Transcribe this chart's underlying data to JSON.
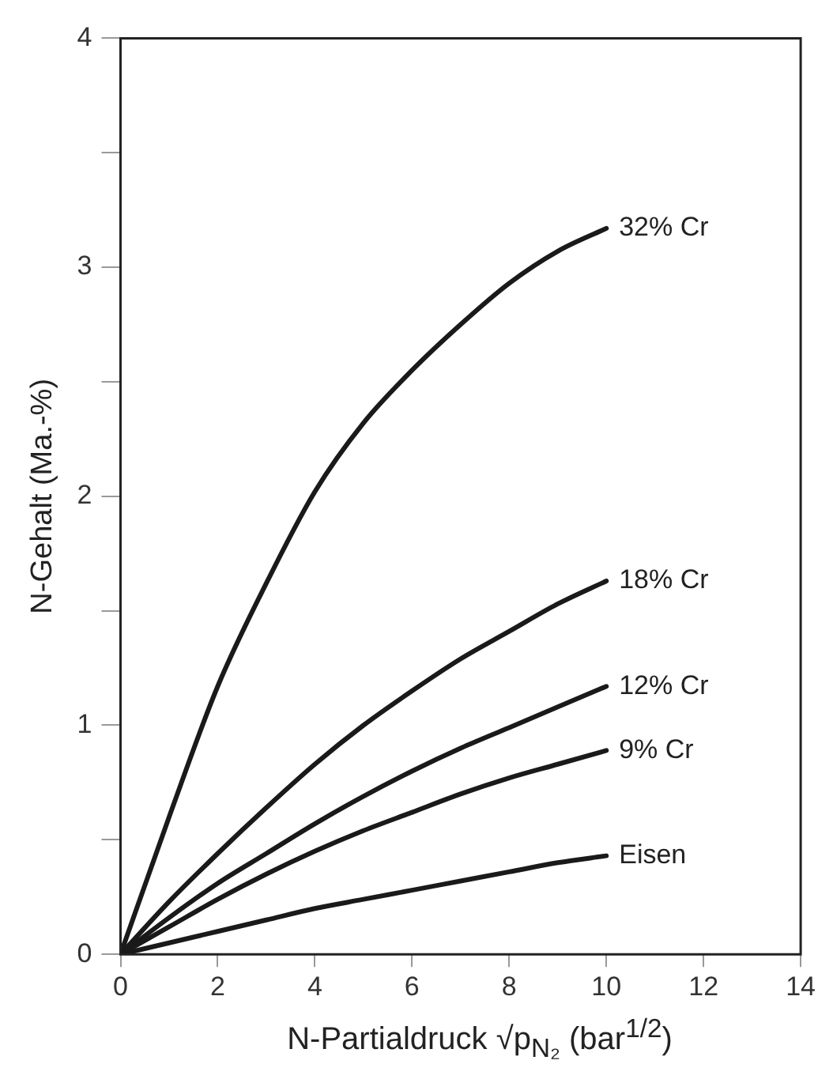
{
  "chart_data": {
    "type": "line",
    "xlabel": "N-Partialdruck √p$_{N₂}$ (bar$^{1/2}$)",
    "ylabel": "N-Gehalt (Ma.-%)",
    "x": [
      0,
      1,
      2,
      3,
      4,
      5,
      6,
      7,
      8,
      9,
      10
    ],
    "series": [
      {
        "name": "32% Cr",
        "color": "#1a1a1a",
        "values": [
          0,
          0.6,
          1.17,
          1.62,
          2.02,
          2.32,
          2.55,
          2.75,
          2.93,
          3.07,
          3.17
        ]
      },
      {
        "name": "18% Cr",
        "color": "#1a1a1a",
        "values": [
          0,
          0.23,
          0.44,
          0.64,
          0.83,
          1.0,
          1.15,
          1.29,
          1.41,
          1.53,
          1.63
        ]
      },
      {
        "name": "12% Cr",
        "color": "#1a1a1a",
        "values": [
          0,
          0.16,
          0.31,
          0.44,
          0.57,
          0.69,
          0.8,
          0.9,
          0.99,
          1.08,
          1.17
        ]
      },
      {
        "name": "9% Cr",
        "color": "#1a1a1a",
        "values": [
          0,
          0.12,
          0.24,
          0.35,
          0.45,
          0.54,
          0.62,
          0.7,
          0.77,
          0.83,
          0.89
        ]
      },
      {
        "name": "Eisen",
        "color": "#1a1a1a",
        "values": [
          0,
          0.05,
          0.1,
          0.15,
          0.2,
          0.24,
          0.28,
          0.32,
          0.36,
          0.4,
          0.43
        ]
      }
    ],
    "xlim": [
      0,
      14
    ],
    "xticks": [
      0,
      2,
      4,
      6,
      8,
      10,
      12,
      14
    ],
    "ylim": [
      0,
      4
    ],
    "yticks": [
      0,
      {
        "value": 0.5,
        "label": null
      },
      1,
      {
        "value": 1.5,
        "label": null
      },
      2,
      {
        "value": 2.5,
        "label": null
      },
      3,
      {
        "value": 3.5,
        "label": null
      },
      4
    ],
    "grid": false,
    "legend": false,
    "marker": "none",
    "line_style": "solid"
  }
}
